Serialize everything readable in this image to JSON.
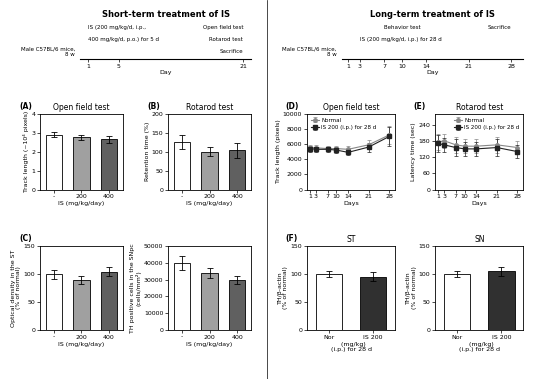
{
  "chart_data": [
    {
      "type": "timeline",
      "title": "Short-term treatment of IS",
      "subtitle": "Male C57BL/6 mice,\n8 w",
      "xlabel": "Day",
      "xlim": [
        0,
        22
      ],
      "xticks": [
        1,
        5,
        21
      ],
      "annotations": [
        {
          "text": "IS (200 mg/kg/d, i.p.,",
          "x": 1
        },
        {
          "text": "400 mg/kg/d, p.o.) for 5 d",
          "x": 1
        },
        {
          "text": "Open field test",
          "x": 21
        },
        {
          "text": "Rotarod test",
          "x": 21
        },
        {
          "text": "Sacrifice",
          "x": 21
        }
      ]
    },
    {
      "type": "bar",
      "title": "Open field test",
      "annotations": [
        {
          "text": "(A)"
        }
      ],
      "xlabel": "IS (mg/kg/day)",
      "ylabel": "Track length (~10⁴ pixels)",
      "categories": [
        "-",
        "200",
        "400"
      ],
      "values": [
        2.9,
        2.75,
        2.65
      ],
      "errors": [
        0.15,
        0.12,
        0.18
      ],
      "colors": [
        "white",
        "#a0a0a0",
        "#606060"
      ],
      "ylim": [
        0,
        4
      ],
      "yticks": [
        0,
        1,
        2,
        3,
        4
      ]
    },
    {
      "type": "bar",
      "title": "Rotarod test",
      "annotations": [
        {
          "text": "(B)"
        }
      ],
      "xlabel": "IS (mg/kg/day)",
      "ylabel": "Retention time (%)",
      "categories": [
        "-",
        "200",
        "400"
      ],
      "values": [
        125,
        100,
        103
      ],
      "errors": [
        18,
        12,
        20
      ],
      "colors": [
        "white",
        "#a0a0a0",
        "#606060"
      ],
      "ylim": [
        0,
        200
      ],
      "yticks": [
        0,
        50,
        100,
        150,
        200
      ]
    },
    {
      "type": "bar",
      "annotations": [
        {
          "text": "(C)"
        }
      ],
      "xlabel": "IS (mg/kg/day)",
      "ylabel": "Optical density in the ST\n(% of normal)",
      "categories": [
        "-",
        "200",
        "400"
      ],
      "values": [
        100,
        90,
        104
      ],
      "errors": [
        8,
        7,
        8
      ],
      "colors": [
        "white",
        "#a0a0a0",
        "#606060"
      ],
      "ylim": [
        0,
        150
      ],
      "yticks": [
        0,
        50,
        100,
        150
      ]
    },
    {
      "type": "bar",
      "xlabel": "IS (mg/kg/day)",
      "ylabel": "TH positive cells in the SNpc\n(cells/mm²)",
      "categories": [
        "-",
        "200",
        "400"
      ],
      "values": [
        40000,
        34000,
        30000
      ],
      "errors": [
        4000,
        3000,
        2500
      ],
      "colors": [
        "white",
        "#a0a0a0",
        "#606060"
      ],
      "ylim": [
        0,
        50000
      ],
      "yticks": [
        0,
        10000,
        20000,
        30000,
        40000,
        50000
      ]
    },
    {
      "type": "timeline",
      "title": "Long-term treatment of IS",
      "subtitle": "Male C57BL/6 mice,\n8 w",
      "xlabel": "Day",
      "xlim": [
        0,
        30
      ],
      "xticks": [
        1,
        3,
        7,
        10,
        14,
        21,
        28
      ],
      "annotations": [
        {
          "text": "Behavior test",
          "x": 7
        },
        {
          "text": "IS (200 mg/kg/d, i.p.) for 28 d",
          "x": 3
        },
        {
          "text": "Sacrifice",
          "x": 28
        }
      ]
    },
    {
      "type": "line",
      "title": "Open field test",
      "annotations": [
        {
          "text": "(D)"
        }
      ],
      "xlabel": "Days",
      "ylabel": "Track length (pixels)",
      "x": [
        1,
        3,
        7,
        10,
        14,
        21,
        28
      ],
      "xlim": [
        0,
        30
      ],
      "xticks": [
        1,
        3,
        7,
        10,
        14,
        21,
        28
      ],
      "ylim": [
        0,
        10000
      ],
      "yticks": [
        0,
        2000,
        4000,
        6000,
        8000,
        10000
      ],
      "legend": "upper left",
      "series": [
        {
          "name": "Normal",
          "color": "#888888",
          "marker": "circle",
          "values": [
            5500,
            5500,
            5400,
            5400,
            5300,
            5900,
            7200
          ],
          "errors": [
            400,
            350,
            350,
            350,
            400,
            600,
            1200
          ]
        },
        {
          "name": "IS 200 (i.p.) for 28 d",
          "color": "#222222",
          "marker": "square",
          "values": [
            5400,
            5300,
            5300,
            5200,
            4900,
            5600,
            7000
          ],
          "errors": [
            400,
            350,
            350,
            350,
            400,
            600,
            1200
          ]
        }
      ]
    },
    {
      "type": "line",
      "title": "Rotarod test",
      "annotations": [
        {
          "text": "(E)"
        }
      ],
      "xlabel": "Days",
      "ylabel": "Latency time (sec)",
      "x": [
        1,
        3,
        7,
        10,
        14,
        21,
        28
      ],
      "xlim": [
        0,
        30
      ],
      "xticks": [
        1,
        3,
        7,
        10,
        14,
        21,
        28
      ],
      "ylim": [
        0,
        280
      ],
      "yticks": [
        0,
        60,
        120,
        180,
        240
      ],
      "legend": "upper right",
      "series": [
        {
          "name": "Normal",
          "color": "#888888",
          "marker": "circle",
          "values": [
            175,
            180,
            165,
            160,
            160,
            165,
            155
          ],
          "errors": [
            30,
            25,
            30,
            25,
            25,
            30,
            25
          ]
        },
        {
          "name": "IS 200 (i.p.) for 28 d",
          "color": "#222222",
          "marker": "square",
          "values": [
            170,
            165,
            155,
            150,
            150,
            155,
            140
          ],
          "errors": [
            30,
            25,
            30,
            25,
            25,
            30,
            25
          ]
        }
      ]
    },
    {
      "type": "bar",
      "title": "ST",
      "annotations": [
        {
          "text": "(F)"
        }
      ],
      "xlabel": "  (mg/kg)\n(i.p.) for 28 d",
      "ylabel": "TH/β-actin\n(% of normal)",
      "categories": [
        "Nor",
        "IS 200"
      ],
      "values": [
        100,
        95
      ],
      "errors": [
        5,
        8
      ],
      "colors": [
        "white",
        "#303030"
      ],
      "ylim": [
        0,
        150
      ],
      "yticks": [
        0,
        50,
        100,
        150
      ]
    },
    {
      "type": "bar",
      "title": "SN",
      "xlabel": "  (mg/kg)\n(i.p.) for 28 d",
      "ylabel": "TH/β-actin\n(% of normal)",
      "categories": [
        "Nor",
        "IS 200"
      ],
      "values": [
        100,
        105
      ],
      "errors": [
        5,
        8
      ],
      "colors": [
        "white",
        "#303030"
      ],
      "ylim": [
        0,
        150
      ],
      "yticks": [
        0,
        50,
        100,
        150
      ]
    }
  ]
}
